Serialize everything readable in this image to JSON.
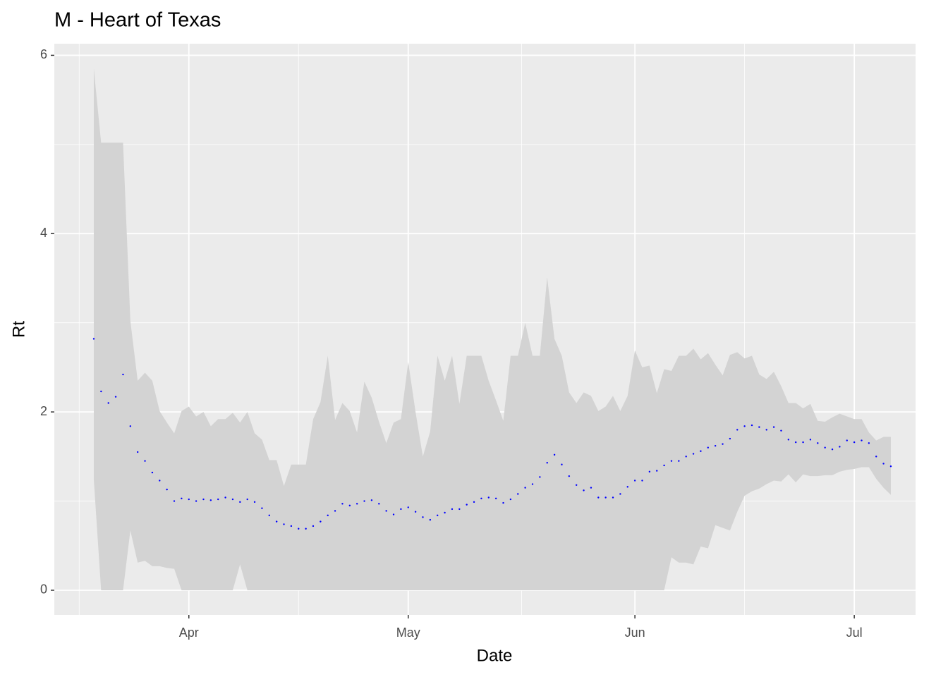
{
  "chart_data": {
    "type": "ribbon-points",
    "title": "M - Heart of Texas",
    "x_label": "Date",
    "y_label": "Rt",
    "x": [
      1,
      2,
      3,
      4,
      5,
      6,
      7,
      8,
      9,
      10,
      11,
      12,
      13,
      14,
      15,
      16,
      17,
      18,
      19,
      20,
      21,
      22,
      23,
      24,
      25,
      26,
      27,
      28,
      29,
      30,
      31,
      32,
      33,
      34,
      35,
      36,
      37,
      38,
      39,
      40,
      41,
      42,
      43,
      44,
      45,
      46,
      47,
      48,
      49,
      50,
      51,
      52,
      53,
      54,
      55,
      56,
      57,
      58,
      59,
      60,
      61,
      62,
      63,
      64,
      65,
      66,
      67,
      68,
      69,
      70,
      71,
      72,
      73,
      74,
      75,
      76,
      77,
      78,
      79,
      80,
      81,
      82,
      83,
      84,
      85,
      86,
      87,
      88,
      89,
      90,
      91,
      92,
      93,
      94,
      95,
      96,
      97,
      98,
      99,
      100,
      101,
      102,
      103,
      104,
      105,
      106,
      107,
      108,
      109,
      110
    ],
    "values": [
      2.82,
      2.23,
      2.1,
      2.17,
      2.42,
      1.84,
      1.55,
      1.45,
      1.32,
      1.23,
      1.13,
      1.0,
      1.03,
      1.02,
      1.0,
      1.02,
      1.01,
      1.02,
      1.04,
      1.02,
      0.99,
      1.02,
      0.99,
      0.92,
      0.84,
      0.77,
      0.74,
      0.72,
      0.69,
      0.69,
      0.72,
      0.77,
      0.84,
      0.89,
      0.97,
      0.95,
      0.97,
      1.0,
      1.01,
      0.97,
      0.89,
      0.85,
      0.91,
      0.93,
      0.88,
      0.82,
      0.79,
      0.84,
      0.87,
      0.91,
      0.91,
      0.96,
      0.99,
      1.03,
      1.04,
      1.03,
      0.98,
      1.02,
      1.08,
      1.15,
      1.19,
      1.27,
      1.43,
      1.52,
      1.41,
      1.28,
      1.18,
      1.12,
      1.15,
      1.04,
      1.04,
      1.04,
      1.08,
      1.16,
      1.23,
      1.23,
      1.33,
      1.34,
      1.4,
      1.45,
      1.45,
      1.5,
      1.53,
      1.56,
      1.6,
      1.62,
      1.64,
      1.7,
      1.8,
      1.84,
      1.85,
      1.83,
      1.8,
      1.83,
      1.79,
      1.69,
      1.66,
      1.66,
      1.69,
      1.65,
      1.6,
      1.58,
      1.61,
      1.68,
      1.66,
      1.68,
      1.65,
      1.5,
      1.42,
      1.39
    ],
    "upper": [
      5.85,
      5.02,
      5.02,
      5.02,
      5.02,
      3.02,
      2.35,
      2.44,
      2.35,
      2.01,
      1.88,
      1.76,
      2.01,
      2.06,
      1.95,
      2.0,
      1.84,
      1.92,
      1.92,
      1.99,
      1.88,
      2.0,
      1.76,
      1.69,
      1.46,
      1.46,
      1.17,
      1.41,
      1.41,
      1.41,
      1.92,
      2.11,
      2.63,
      1.91,
      2.1,
      2.01,
      1.77,
      2.34,
      2.16,
      1.89,
      1.65,
      1.88,
      1.92,
      2.56,
      2.0,
      1.5,
      1.78,
      2.63,
      2.35,
      2.63,
      2.09,
      2.63,
      2.63,
      2.63,
      2.35,
      2.13,
      1.9,
      2.63,
      2.63,
      3.0,
      2.63,
      2.63,
      3.51,
      2.82,
      2.63,
      2.22,
      2.1,
      2.22,
      2.18,
      2.01,
      2.06,
      2.18,
      2.01,
      2.18,
      2.69,
      2.5,
      2.52,
      2.21,
      2.48,
      2.46,
      2.63,
      2.63,
      2.71,
      2.59,
      2.66,
      2.53,
      2.41,
      2.64,
      2.67,
      2.6,
      2.63,
      2.42,
      2.37,
      2.45,
      2.29,
      2.1,
      2.1,
      2.04,
      2.09,
      1.9,
      1.89,
      1.94,
      1.98,
      1.95,
      1.92,
      1.92,
      1.77,
      1.68,
      1.72,
      1.72
    ],
    "lower": [
      1.24,
      0,
      0,
      0,
      0,
      0.67,
      0.31,
      0.33,
      0.27,
      0.27,
      0.25,
      0.24,
      0,
      0,
      0,
      0,
      0,
      0,
      0,
      0,
      0.29,
      0,
      0,
      0,
      0,
      0,
      0,
      0,
      0,
      0,
      0,
      0,
      0,
      0,
      0,
      0,
      0,
      0,
      0,
      0,
      0,
      0,
      0,
      0,
      0,
      0,
      0,
      0,
      0,
      0,
      0,
      0,
      0,
      0,
      0,
      0,
      0,
      0,
      0,
      0,
      0,
      0,
      0,
      0,
      0,
      0,
      0,
      0,
      0,
      0,
      0,
      0,
      0,
      0,
      0,
      0,
      0,
      0,
      0,
      0.37,
      0.31,
      0.31,
      0.29,
      0.49,
      0.47,
      0.73,
      0.7,
      0.67,
      0.88,
      1.06,
      1.11,
      1.14,
      1.19,
      1.23,
      1.22,
      1.3,
      1.21,
      1.3,
      1.28,
      1.28,
      1.29,
      1.29,
      1.33,
      1.35,
      1.36,
      1.38,
      1.38,
      1.25,
      1.15,
      1.07
    ],
    "color": "#0000ff",
    "ribbon_color": "#d3d3d3",
    "xlim": [
      -4.4,
      113.38
    ],
    "ylim": [
      -0.277,
      6.13
    ],
    "xticks": [
      {
        "value": 14,
        "label": "Apr"
      },
      {
        "value": 44,
        "label": "May"
      },
      {
        "value": 75,
        "label": "Jun"
      },
      {
        "value": 105,
        "label": "Jul"
      }
    ],
    "yticks": [
      0,
      2,
      4,
      6
    ],
    "grid": true
  }
}
